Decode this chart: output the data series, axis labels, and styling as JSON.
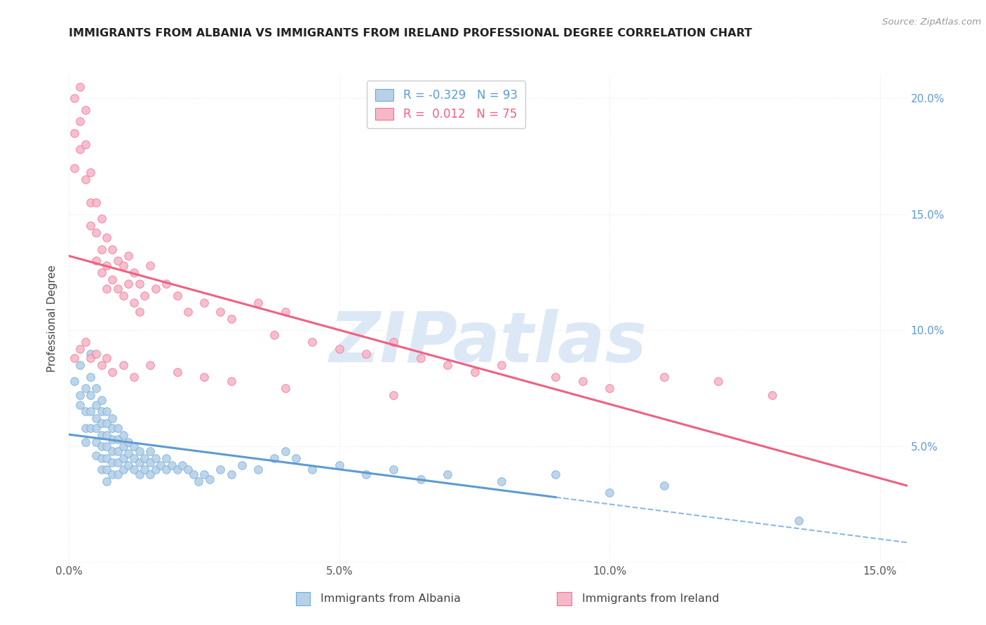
{
  "title": "IMMIGRANTS FROM ALBANIA VS IMMIGRANTS FROM IRELAND PROFESSIONAL DEGREE CORRELATION CHART",
  "source": "Source: ZipAtlas.com",
  "xlabel_albania": "Immigrants from Albania",
  "xlabel_ireland": "Immigrants from Ireland",
  "ylabel": "Professional Degree",
  "xlim": [
    0.0,
    0.155
  ],
  "ylim": [
    0.0,
    0.21
  ],
  "xticks": [
    0.0,
    0.05,
    0.1,
    0.15
  ],
  "xtick_labels": [
    "0.0%",
    "5.0%",
    "10.0%",
    "15.0%"
  ],
  "yticks": [
    0.0,
    0.05,
    0.1,
    0.15,
    0.2
  ],
  "ytick_labels": [
    "",
    "5.0%",
    "10.0%",
    "15.0%",
    "20.0%"
  ],
  "r_albania": -0.329,
  "n_albania": 93,
  "r_ireland": 0.012,
  "n_ireland": 75,
  "albania_color": "#b8d0e8",
  "ireland_color": "#f5b8c8",
  "albania_edge_color": "#6baed6",
  "ireland_edge_color": "#f07090",
  "albania_line_color": "#5b9bd5",
  "ireland_line_color": "#f06080",
  "watermark_color": "#dce8f5",
  "background_color": "#ffffff",
  "grid_color": "#e8e8e8",
  "dot_size": 70,
  "albania_x": [
    0.001,
    0.002,
    0.002,
    0.002,
    0.003,
    0.003,
    0.003,
    0.003,
    0.004,
    0.004,
    0.004,
    0.004,
    0.004,
    0.005,
    0.005,
    0.005,
    0.005,
    0.005,
    0.005,
    0.006,
    0.006,
    0.006,
    0.006,
    0.006,
    0.006,
    0.006,
    0.007,
    0.007,
    0.007,
    0.007,
    0.007,
    0.007,
    0.007,
    0.008,
    0.008,
    0.008,
    0.008,
    0.008,
    0.008,
    0.009,
    0.009,
    0.009,
    0.009,
    0.009,
    0.01,
    0.01,
    0.01,
    0.01,
    0.011,
    0.011,
    0.011,
    0.012,
    0.012,
    0.012,
    0.013,
    0.013,
    0.013,
    0.014,
    0.014,
    0.015,
    0.015,
    0.015,
    0.016,
    0.016,
    0.017,
    0.018,
    0.018,
    0.019,
    0.02,
    0.021,
    0.022,
    0.023,
    0.024,
    0.025,
    0.026,
    0.028,
    0.03,
    0.032,
    0.035,
    0.038,
    0.04,
    0.042,
    0.045,
    0.05,
    0.055,
    0.06,
    0.065,
    0.07,
    0.08,
    0.09,
    0.1,
    0.11,
    0.135
  ],
  "albania_y": [
    0.078,
    0.085,
    0.072,
    0.068,
    0.075,
    0.065,
    0.058,
    0.052,
    0.09,
    0.08,
    0.072,
    0.065,
    0.058,
    0.075,
    0.068,
    0.062,
    0.058,
    0.052,
    0.046,
    0.07,
    0.065,
    0.06,
    0.055,
    0.05,
    0.045,
    0.04,
    0.065,
    0.06,
    0.055,
    0.05,
    0.045,
    0.04,
    0.035,
    0.062,
    0.058,
    0.053,
    0.048,
    0.043,
    0.038,
    0.058,
    0.053,
    0.048,
    0.043,
    0.038,
    0.055,
    0.05,
    0.045,
    0.04,
    0.052,
    0.047,
    0.042,
    0.05,
    0.045,
    0.04,
    0.048,
    0.043,
    0.038,
    0.045,
    0.04,
    0.048,
    0.043,
    0.038,
    0.045,
    0.04,
    0.042,
    0.045,
    0.04,
    0.042,
    0.04,
    0.042,
    0.04,
    0.038,
    0.035,
    0.038,
    0.036,
    0.04,
    0.038,
    0.042,
    0.04,
    0.045,
    0.048,
    0.045,
    0.04,
    0.042,
    0.038,
    0.04,
    0.036,
    0.038,
    0.035,
    0.038,
    0.03,
    0.033,
    0.018
  ],
  "ireland_x": [
    0.001,
    0.001,
    0.001,
    0.002,
    0.002,
    0.002,
    0.003,
    0.003,
    0.003,
    0.004,
    0.004,
    0.004,
    0.005,
    0.005,
    0.005,
    0.006,
    0.006,
    0.006,
    0.007,
    0.007,
    0.007,
    0.008,
    0.008,
    0.009,
    0.009,
    0.01,
    0.01,
    0.011,
    0.011,
    0.012,
    0.012,
    0.013,
    0.013,
    0.014,
    0.015,
    0.016,
    0.018,
    0.02,
    0.022,
    0.025,
    0.028,
    0.03,
    0.035,
    0.038,
    0.04,
    0.045,
    0.05,
    0.055,
    0.06,
    0.065,
    0.07,
    0.075,
    0.08,
    0.09,
    0.095,
    0.1,
    0.11,
    0.12,
    0.13,
    0.001,
    0.002,
    0.003,
    0.004,
    0.005,
    0.006,
    0.007,
    0.008,
    0.01,
    0.012,
    0.015,
    0.02,
    0.025,
    0.03,
    0.04,
    0.06
  ],
  "ireland_y": [
    0.2,
    0.185,
    0.17,
    0.205,
    0.19,
    0.178,
    0.195,
    0.18,
    0.165,
    0.168,
    0.155,
    0.145,
    0.155,
    0.142,
    0.13,
    0.148,
    0.135,
    0.125,
    0.14,
    0.128,
    0.118,
    0.135,
    0.122,
    0.13,
    0.118,
    0.128,
    0.115,
    0.132,
    0.12,
    0.125,
    0.112,
    0.12,
    0.108,
    0.115,
    0.128,
    0.118,
    0.12,
    0.115,
    0.108,
    0.112,
    0.108,
    0.105,
    0.112,
    0.098,
    0.108,
    0.095,
    0.092,
    0.09,
    0.095,
    0.088,
    0.085,
    0.082,
    0.085,
    0.08,
    0.078,
    0.075,
    0.08,
    0.078,
    0.072,
    0.088,
    0.092,
    0.095,
    0.088,
    0.09,
    0.085,
    0.088,
    0.082,
    0.085,
    0.08,
    0.085,
    0.082,
    0.08,
    0.078,
    0.075,
    0.072
  ]
}
